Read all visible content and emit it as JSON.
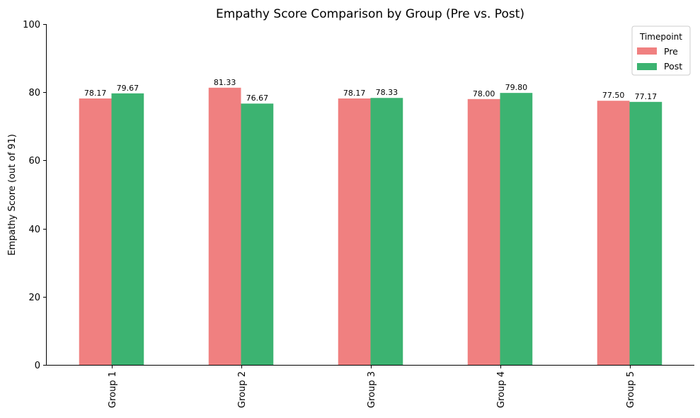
{
  "chart_data": {
    "type": "bar",
    "title": "Empathy Score Comparison by Group (Pre vs. Post)",
    "xlabel": "",
    "ylabel": "Empathy Score (out of 91)",
    "categories": [
      "Group 1",
      "Group 2",
      "Group 3",
      "Group 4",
      "Group 5"
    ],
    "series": [
      {
        "name": "Pre",
        "color": "#f08080",
        "values": [
          78.17,
          81.33,
          78.17,
          78.0,
          77.5
        ],
        "labels": [
          "78.17",
          "81.33",
          "78.17",
          "78.00",
          "77.50"
        ]
      },
      {
        "name": "Post",
        "color": "#3cb371",
        "values": [
          79.67,
          76.67,
          78.33,
          79.8,
          77.17
        ],
        "labels": [
          "79.67",
          "76.67",
          "78.33",
          "79.80",
          "77.17"
        ]
      }
    ],
    "ylim": [
      0,
      100
    ],
    "yticks": [
      0,
      20,
      40,
      60,
      80,
      100
    ],
    "ytick_labels": [
      "0",
      "20",
      "40",
      "60",
      "80",
      "100"
    ],
    "legend": {
      "title": "Timepoint",
      "position": "top-right"
    },
    "grid": false
  }
}
